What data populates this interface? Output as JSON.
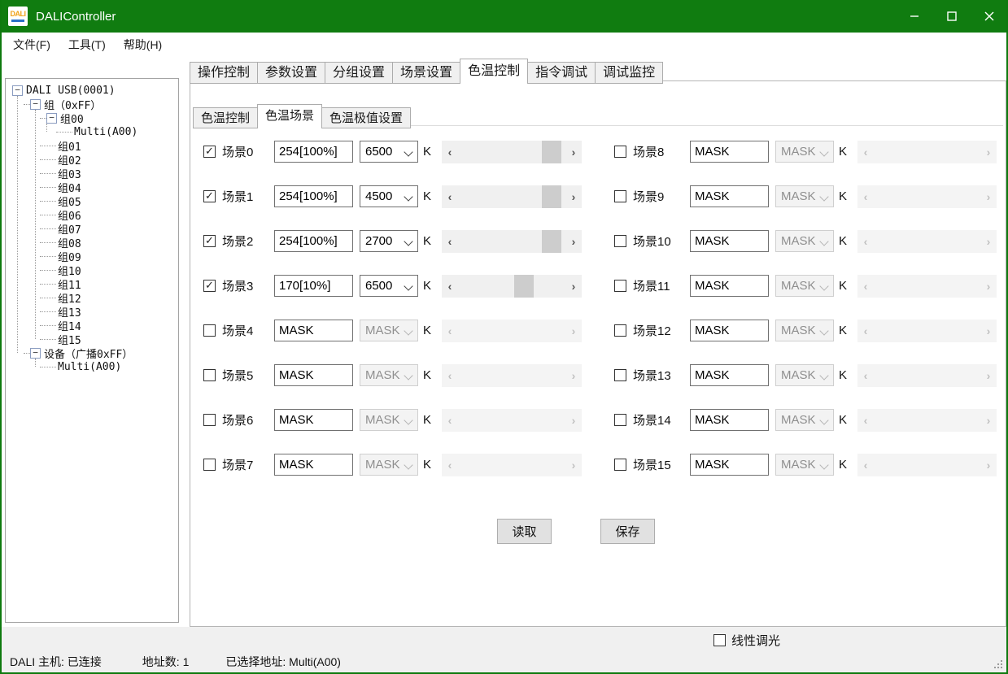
{
  "titlebar": {
    "title": "DALIController",
    "icon_text": "DALI"
  },
  "menubar": {
    "items": [
      "文件(F)",
      "工具(T)",
      "帮助(H)"
    ]
  },
  "tree": {
    "nodes": [
      {
        "label": "DALI USB(0001)",
        "level": 0,
        "expand": true
      },
      {
        "label": "组（0xFF）",
        "level": 1,
        "expand": true
      },
      {
        "label": "组00",
        "level": 2,
        "expand": true
      },
      {
        "label": "Multi(A00)",
        "level": 3,
        "expand": false
      },
      {
        "label": "组01",
        "level": 2,
        "expand": false
      },
      {
        "label": "组02",
        "level": 2,
        "expand": false
      },
      {
        "label": "组03",
        "level": 2,
        "expand": false
      },
      {
        "label": "组04",
        "level": 2,
        "expand": false
      },
      {
        "label": "组05",
        "level": 2,
        "expand": false
      },
      {
        "label": "组06",
        "level": 2,
        "expand": false
      },
      {
        "label": "组07",
        "level": 2,
        "expand": false
      },
      {
        "label": "组08",
        "level": 2,
        "expand": false
      },
      {
        "label": "组09",
        "level": 2,
        "expand": false
      },
      {
        "label": "组10",
        "level": 2,
        "expand": false
      },
      {
        "label": "组11",
        "level": 2,
        "expand": false
      },
      {
        "label": "组12",
        "level": 2,
        "expand": false
      },
      {
        "label": "组13",
        "level": 2,
        "expand": false
      },
      {
        "label": "组14",
        "level": 2,
        "expand": false
      },
      {
        "label": "组15",
        "level": 2,
        "expand": false
      },
      {
        "label": "设备（广播0xFF）",
        "level": 1,
        "expand": true
      },
      {
        "label": "Multi(A00)",
        "level": 2,
        "expand": false
      }
    ]
  },
  "main_tabs": {
    "items": [
      "操作控制",
      "参数设置",
      "分组设置",
      "场景设置",
      "色温控制",
      "指令调试",
      "调试监控"
    ],
    "selected_index": 4
  },
  "sub_tabs": {
    "items": [
      "色温控制",
      "色温场景",
      "色温极值设置"
    ],
    "selected_index": 1
  },
  "unit_label": "K",
  "scenes": [
    {
      "label": "场景0",
      "checked": true,
      "level": "254[100%]",
      "kelvin": "6500",
      "enabled": true,
      "thumb": 0.95
    },
    {
      "label": "场景1",
      "checked": true,
      "level": "254[100%]",
      "kelvin": "4500",
      "enabled": true,
      "thumb": 0.95
    },
    {
      "label": "场景2",
      "checked": true,
      "level": "254[100%]",
      "kelvin": "2700",
      "enabled": true,
      "thumb": 0.95
    },
    {
      "label": "场景3",
      "checked": true,
      "level": "170[10%]",
      "kelvin": "6500",
      "enabled": true,
      "thumb": 0.64
    },
    {
      "label": "场景4",
      "checked": false,
      "level": "MASK",
      "kelvin": "MASK",
      "enabled": false,
      "thumb": null
    },
    {
      "label": "场景5",
      "checked": false,
      "level": "MASK",
      "kelvin": "MASK",
      "enabled": false,
      "thumb": null
    },
    {
      "label": "场景6",
      "checked": false,
      "level": "MASK",
      "kelvin": "MASK",
      "enabled": false,
      "thumb": null
    },
    {
      "label": "场景7",
      "checked": false,
      "level": "MASK",
      "kelvin": "MASK",
      "enabled": false,
      "thumb": null
    },
    {
      "label": "场景8",
      "checked": false,
      "level": "MASK",
      "kelvin": "MASK",
      "enabled": false,
      "thumb": null
    },
    {
      "label": "场景9",
      "checked": false,
      "level": "MASK",
      "kelvin": "MASK",
      "enabled": false,
      "thumb": null
    },
    {
      "label": "场景10",
      "checked": false,
      "level": "MASK",
      "kelvin": "MASK",
      "enabled": false,
      "thumb": null
    },
    {
      "label": "场景11",
      "checked": false,
      "level": "MASK",
      "kelvin": "MASK",
      "enabled": false,
      "thumb": null
    },
    {
      "label": "场景12",
      "checked": false,
      "level": "MASK",
      "kelvin": "MASK",
      "enabled": false,
      "thumb": null
    },
    {
      "label": "场景13",
      "checked": false,
      "level": "MASK",
      "kelvin": "MASK",
      "enabled": false,
      "thumb": null
    },
    {
      "label": "场景14",
      "checked": false,
      "level": "MASK",
      "kelvin": "MASK",
      "enabled": false,
      "thumb": null
    },
    {
      "label": "场景15",
      "checked": false,
      "level": "MASK",
      "kelvin": "MASK",
      "enabled": false,
      "thumb": null
    }
  ],
  "buttons": {
    "read": "读取",
    "save": "保存"
  },
  "footer": {
    "linear_dimming_label": "线性调光",
    "linear_dimming_checked": false
  },
  "statusbar": {
    "host": "DALI 主机: 已连接",
    "address_count": "地址数: 1",
    "selected_address": "已选择地址: Multi(A00)"
  },
  "colors": {
    "titlebar_green": "#107c10",
    "scrollbar_thumb": "#cdcdcd",
    "scrollbar_track": "#f0f0f0"
  }
}
